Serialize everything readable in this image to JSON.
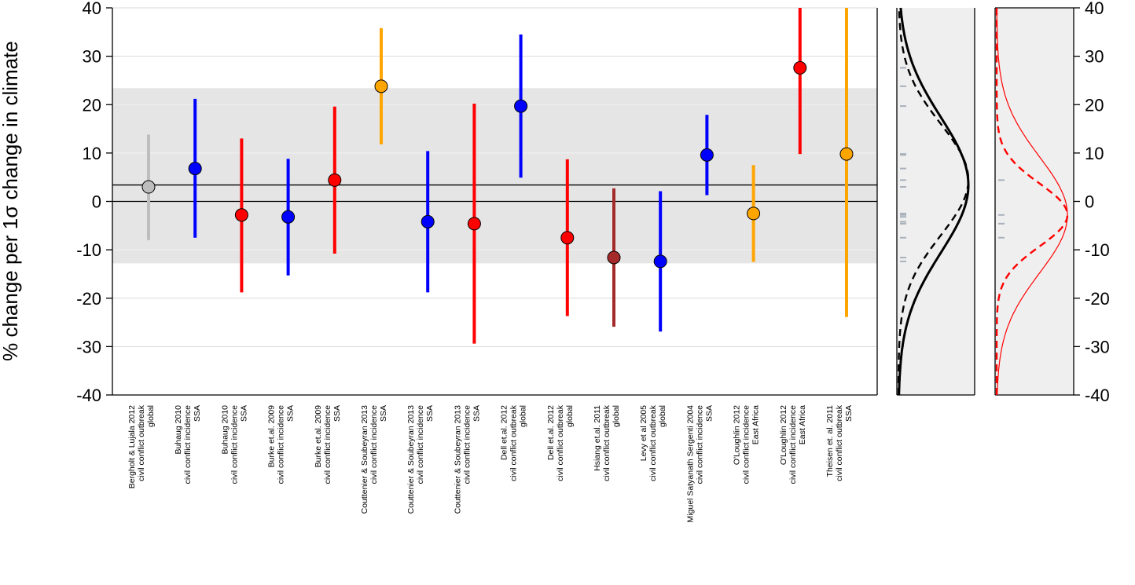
{
  "chart_data": {
    "type": "scatter",
    "title": "",
    "ylabel": "% change per 1σ change in climate",
    "ylim": [
      -40,
      40
    ],
    "yticks": [
      -40,
      -30,
      -20,
      -10,
      0,
      10,
      20,
      30,
      40
    ],
    "yticks_right": [
      -40,
      -30,
      -20,
      -10,
      0,
      10,
      20,
      30,
      40
    ],
    "mean_line": 3.4,
    "shaded_band": [
      -12.8,
      23.4
    ],
    "colors": {
      "grey": "#bdbdbd",
      "blue": "#0000ff",
      "red": "#ff0000",
      "orange": "#ffa500",
      "brown": "#a52a2a"
    },
    "studies": [
      {
        "lines": [
          "Bergholt & Lujala 2012",
          "civil conflict outbreak",
          "global"
        ],
        "estimate": 3.0,
        "ci": [
          -8,
          13.8
        ],
        "color": "grey"
      },
      {
        "lines": [
          "Buhaug 2010",
          "civil conflict incidence",
          "SSA"
        ],
        "estimate": 6.8,
        "ci": [
          -7.5,
          21.2
        ],
        "color": "blue"
      },
      {
        "lines": [
          "Buhaug 2010",
          "civil conflict incidence",
          "SSA"
        ],
        "estimate": -2.8,
        "ci": [
          -18.8,
          13.0
        ],
        "color": "red"
      },
      {
        "lines": [
          "Burke et.al. 2009",
          "civil conflict incidence",
          "SSA"
        ],
        "estimate": -3.2,
        "ci": [
          -15.3,
          8.8
        ],
        "color": "blue"
      },
      {
        "lines": [
          "Burke et.al. 2009",
          "civil conflict incidence",
          "SSA"
        ],
        "estimate": 4.4,
        "ci": [
          -10.8,
          19.6
        ],
        "color": "red"
      },
      {
        "lines": [
          "Couttenier & Soubeyran 2013",
          "civil conflict incidence",
          "SSA"
        ],
        "estimate": 23.8,
        "ci": [
          11.8,
          35.8
        ],
        "color": "orange"
      },
      {
        "lines": [
          "Couttenier & Soubeyran 2013",
          "civil conflict incidence",
          "SSA"
        ],
        "estimate": -4.2,
        "ci": [
          -18.8,
          10.4
        ],
        "color": "blue"
      },
      {
        "lines": [
          "Couttenier & Soubeyran 2013",
          "civil conflict incidence",
          "SSA"
        ],
        "estimate": -4.6,
        "ci": [
          -29.4,
          20.2
        ],
        "color": "red"
      },
      {
        "lines": [
          "Dell et.al. 2012",
          "civil conflict outbreak",
          "global"
        ],
        "estimate": 19.7,
        "ci": [
          4.9,
          34.5
        ],
        "color": "blue"
      },
      {
        "lines": [
          "Dell et.al. 2012",
          "civil conflict outbreak",
          "global"
        ],
        "estimate": -7.5,
        "ci": [
          -23.7,
          8.7
        ],
        "color": "red"
      },
      {
        "lines": [
          "Hsiang et.al. 2011",
          "civil conflict outbreak",
          "global"
        ],
        "estimate": -11.6,
        "ci": [
          -25.9,
          2.7
        ],
        "color": "brown"
      },
      {
        "lines": [
          "Levy et al 2005",
          "civil conflict outbreak",
          "global"
        ],
        "estimate": -12.4,
        "ci": [
          -26.9,
          2.1
        ],
        "color": "blue"
      },
      {
        "lines": [
          "Miguel Satyanath Sergenti 2004",
          "civil conflict incidence",
          "SSA"
        ],
        "estimate": 9.6,
        "ci": [
          1.3,
          17.9
        ],
        "color": "blue"
      },
      {
        "lines": [
          "O'Loughlin 2012",
          "civil conflict incidence",
          "East Africa"
        ],
        "estimate": -2.5,
        "ci": [
          -12.5,
          7.5
        ],
        "color": "orange"
      },
      {
        "lines": [
          "O'Loughlin 2012",
          "civil conflict incidence",
          "East Africa"
        ],
        "estimate": 27.6,
        "ci": [
          9.8,
          40
        ],
        "color": "red"
      },
      {
        "lines": [
          "Theisen et. al. 2011",
          "civil conflict outbreak",
          "SSA"
        ],
        "estimate": 9.8,
        "ci": [
          -23.9,
          40
        ],
        "color": "orange"
      }
    ],
    "density_panel_1": {
      "solid_mean": 3.4,
      "solid_sd": 14.0,
      "dashed_mean": 4.5,
      "dashed_sd": 11.5,
      "rug": [
        -12.4,
        -11.6,
        -7.5,
        -4.6,
        -4.2,
        -3.2,
        -2.8,
        -2.5,
        3.0,
        4.4,
        6.8,
        9.6,
        9.8,
        19.7,
        23.8,
        27.6
      ]
    },
    "density_panel_2": {
      "solid_mean": -2.8,
      "solid_sd": 12.0,
      "dashed_mean": -2.8,
      "dashed_sd": 6.5,
      "rug": [
        -7.5,
        -4.6,
        -2.8,
        4.4
      ]
    }
  }
}
